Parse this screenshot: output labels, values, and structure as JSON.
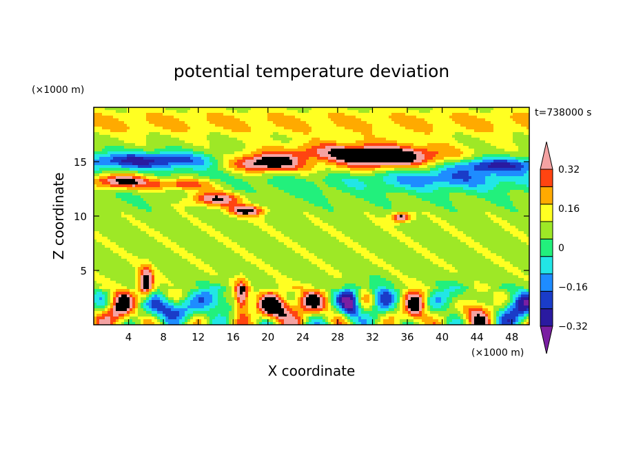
{
  "chart_data": {
    "type": "heatmap",
    "title": "potential temperature deviation",
    "time_label": "t=738000 s",
    "xlabel": "X coordinate",
    "ylabel": "Z coordinate",
    "x_unit": "(×1000 m)",
    "y_unit": "(×1000 m)",
    "xlim": [
      0,
      50
    ],
    "ylim": [
      0,
      20
    ],
    "x_ticks": [
      4,
      8,
      12,
      16,
      20,
      24,
      28,
      32,
      36,
      40,
      44,
      48
    ],
    "y_ticks": [
      5,
      10,
      15
    ],
    "colorbar": {
      "levels": [
        -0.4,
        -0.32,
        -0.24,
        -0.16,
        -0.08,
        0,
        0.08,
        0.16,
        0.24,
        0.32,
        0.4
      ],
      "tick_labels": [
        "0.32",
        "0.16",
        "0",
        "−0.16",
        "−0.32"
      ],
      "tick_values": [
        0.32,
        0.16,
        0,
        -0.16,
        -0.32
      ],
      "colors": [
        "#7a1fa2",
        "#2a1aa0",
        "#1a3cc8",
        "#1e8cff",
        "#22e6e6",
        "#22f07c",
        "#9ee826",
        "#ffff22",
        "#ffaa00",
        "#ff4411",
        "#f4a2a2"
      ],
      "extend": "both"
    }
  }
}
